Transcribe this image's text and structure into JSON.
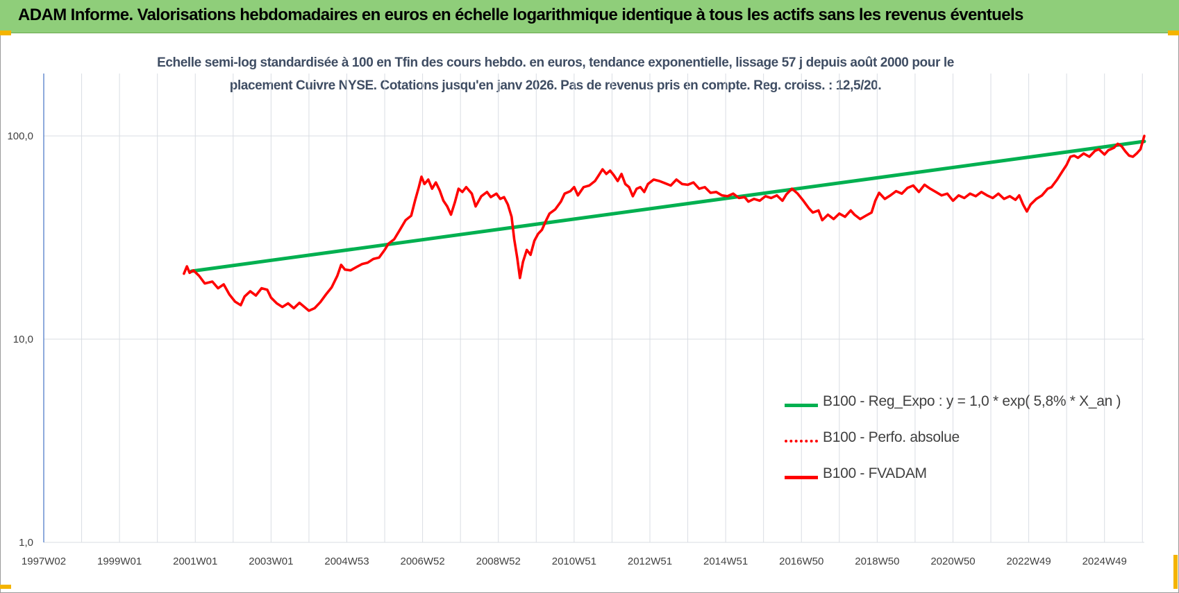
{
  "header": {
    "title": "ADAM Informe. Valorisations hebdomadaires en euros en échelle logarithmique identique à tous les actifs sans les revenus éventuels"
  },
  "chart_data": {
    "type": "line",
    "title": "",
    "subtitle_lines": [
      "Echelle semi-log standardisée à 100 en Tfin des cours hebdo. en euros, tendance exponentielle, lissage 57 j depuis août 2000 pour le",
      "placement Cuivre NYSE. Cotations jusqu'en janv 2026. Pas de revenus pris en compte. Reg. croiss. : 12,5/20."
    ],
    "y_scale": "log",
    "ylim": [
      1,
      200
    ],
    "y_ticks": [
      {
        "value": 1,
        "label": "1,0"
      },
      {
        "value": 10,
        "label": "10,0"
      },
      {
        "value": 100,
        "label": "100,0"
      }
    ],
    "xlim": [
      1997.0,
      2026.05
    ],
    "x_ticks": [
      {
        "value": 1997.0,
        "label": "1997W02"
      },
      {
        "value": 1999.0,
        "label": "1999W01"
      },
      {
        "value": 2001.0,
        "label": "2001W01"
      },
      {
        "value": 2003.0,
        "label": "2003W01"
      },
      {
        "value": 2005.0,
        "label": "2004W53"
      },
      {
        "value": 2007.0,
        "label": "2006W52"
      },
      {
        "value": 2009.0,
        "label": "2008W52"
      },
      {
        "value": 2011.0,
        "label": "2010W51"
      },
      {
        "value": 2013.0,
        "label": "2012W51"
      },
      {
        "value": 2015.0,
        "label": "2014W51"
      },
      {
        "value": 2017.0,
        "label": "2016W50"
      },
      {
        "value": 2019.0,
        "label": "2018W50"
      },
      {
        "value": 2021.0,
        "label": "2020W50"
      },
      {
        "value": 2023.0,
        "label": "2022W49"
      },
      {
        "value": 2025.0,
        "label": "2024W49"
      }
    ],
    "grid": true,
    "legend_position": "bottom-right",
    "series": [
      {
        "name": "B100 - Reg_Expo : y = 1,0 * exp( 5,8% *  X_an )",
        "color": "#00b050",
        "style": "solid",
        "points": [
          [
            2000.9,
            21.6
          ],
          [
            2026.05,
            94.0
          ]
        ]
      },
      {
        "name": "B100 - Perfo. absolue",
        "color": "#ff0000",
        "style": "dotted",
        "points": []
      },
      {
        "name": "B100 - FVADAM",
        "color": "#ff0000",
        "style": "solid",
        "points": [
          [
            2000.7,
            21.0
          ],
          [
            2000.78,
            22.8
          ],
          [
            2000.85,
            21.2
          ],
          [
            2000.95,
            21.8
          ],
          [
            2001.1,
            20.5
          ],
          [
            2001.25,
            18.8
          ],
          [
            2001.45,
            19.2
          ],
          [
            2001.6,
            17.8
          ],
          [
            2001.75,
            18.6
          ],
          [
            2001.9,
            16.6
          ],
          [
            2002.05,
            15.3
          ],
          [
            2002.2,
            14.7
          ],
          [
            2002.3,
            16.2
          ],
          [
            2002.45,
            17.2
          ],
          [
            2002.6,
            16.4
          ],
          [
            2002.75,
            17.8
          ],
          [
            2002.9,
            17.5
          ],
          [
            2003.0,
            16.0
          ],
          [
            2003.15,
            15.0
          ],
          [
            2003.3,
            14.4
          ],
          [
            2003.45,
            15.0
          ],
          [
            2003.6,
            14.2
          ],
          [
            2003.75,
            15.1
          ],
          [
            2003.9,
            14.3
          ],
          [
            2004.0,
            13.8
          ],
          [
            2004.15,
            14.2
          ],
          [
            2004.3,
            15.2
          ],
          [
            2004.45,
            16.6
          ],
          [
            2004.6,
            18.0
          ],
          [
            2004.75,
            20.5
          ],
          [
            2004.85,
            23.2
          ],
          [
            2004.95,
            22.0
          ],
          [
            2005.1,
            21.8
          ],
          [
            2005.25,
            22.6
          ],
          [
            2005.4,
            23.4
          ],
          [
            2005.55,
            23.8
          ],
          [
            2005.7,
            24.8
          ],
          [
            2005.85,
            25.2
          ],
          [
            2006.0,
            27.5
          ],
          [
            2006.1,
            29.5
          ],
          [
            2006.25,
            31.0
          ],
          [
            2006.4,
            34.5
          ],
          [
            2006.55,
            38.5
          ],
          [
            2006.7,
            40.5
          ],
          [
            2006.8,
            48.0
          ],
          [
            2006.9,
            56.0
          ],
          [
            2006.97,
            63.0
          ],
          [
            2007.05,
            58.0
          ],
          [
            2007.15,
            61.0
          ],
          [
            2007.25,
            55.0
          ],
          [
            2007.35,
            59.0
          ],
          [
            2007.45,
            54.0
          ],
          [
            2007.55,
            48.0
          ],
          [
            2007.65,
            45.0
          ],
          [
            2007.75,
            41.0
          ],
          [
            2007.85,
            47.0
          ],
          [
            2007.95,
            55.0
          ],
          [
            2008.05,
            53.0
          ],
          [
            2008.15,
            56.0
          ],
          [
            2008.3,
            52.0
          ],
          [
            2008.4,
            45.0
          ],
          [
            2008.55,
            50.5
          ],
          [
            2008.7,
            53.0
          ],
          [
            2008.8,
            50.0
          ],
          [
            2008.95,
            52.0
          ],
          [
            2009.05,
            49.0
          ],
          [
            2009.15,
            50.0
          ],
          [
            2009.25,
            46.0
          ],
          [
            2009.35,
            40.0
          ],
          [
            2009.42,
            31.0
          ],
          [
            2009.5,
            25.0
          ],
          [
            2009.57,
            20.0
          ],
          [
            2009.65,
            24.0
          ],
          [
            2009.75,
            27.5
          ],
          [
            2009.85,
            26.0
          ],
          [
            2009.95,
            30.5
          ],
          [
            2010.05,
            33.0
          ],
          [
            2010.15,
            34.5
          ],
          [
            2010.25,
            38.0
          ],
          [
            2010.35,
            41.5
          ],
          [
            2010.5,
            43.5
          ],
          [
            2010.65,
            47.5
          ],
          [
            2010.75,
            52.0
          ],
          [
            2010.9,
            53.5
          ],
          [
            2011.0,
            56.0
          ],
          [
            2011.1,
            51.0
          ],
          [
            2011.25,
            56.0
          ],
          [
            2011.4,
            57.0
          ],
          [
            2011.55,
            60.0
          ],
          [
            2011.65,
            64.0
          ],
          [
            2011.75,
            68.5
          ],
          [
            2011.85,
            65.0
          ],
          [
            2011.95,
            67.5
          ],
          [
            2012.05,
            64.0
          ],
          [
            2012.15,
            60.0
          ],
          [
            2012.25,
            65.0
          ],
          [
            2012.35,
            58.0
          ],
          [
            2012.45,
            56.0
          ],
          [
            2012.55,
            50.5
          ],
          [
            2012.65,
            55.0
          ],
          [
            2012.75,
            56.0
          ],
          [
            2012.85,
            53.0
          ],
          [
            2012.95,
            58.0
          ],
          [
            2013.1,
            61.0
          ],
          [
            2013.25,
            60.0
          ],
          [
            2013.4,
            58.5
          ],
          [
            2013.55,
            57.0
          ],
          [
            2013.7,
            61.0
          ],
          [
            2013.85,
            58.0
          ],
          [
            2014.0,
            57.5
          ],
          [
            2014.15,
            59.0
          ],
          [
            2014.3,
            55.0
          ],
          [
            2014.45,
            56.0
          ],
          [
            2014.6,
            52.5
          ],
          [
            2014.75,
            53.0
          ],
          [
            2014.9,
            51.0
          ],
          [
            2015.05,
            50.5
          ],
          [
            2015.2,
            52.0
          ],
          [
            2015.35,
            49.5
          ],
          [
            2015.5,
            50.0
          ],
          [
            2015.6,
            47.5
          ],
          [
            2015.75,
            49.0
          ],
          [
            2015.9,
            48.0
          ],
          [
            2016.05,
            50.5
          ],
          [
            2016.2,
            49.5
          ],
          [
            2016.35,
            51.0
          ],
          [
            2016.5,
            48.0
          ],
          [
            2016.6,
            51.5
          ],
          [
            2016.75,
            55.0
          ],
          [
            2016.9,
            52.0
          ],
          [
            2017.05,
            48.0
          ],
          [
            2017.2,
            44.0
          ],
          [
            2017.3,
            42.0
          ],
          [
            2017.45,
            43.0
          ],
          [
            2017.55,
            38.5
          ],
          [
            2017.7,
            41.0
          ],
          [
            2017.85,
            39.0
          ],
          [
            2018.0,
            41.5
          ],
          [
            2018.15,
            40.0
          ],
          [
            2018.3,
            43.0
          ],
          [
            2018.4,
            41.0
          ],
          [
            2018.55,
            39.0
          ],
          [
            2018.7,
            40.5
          ],
          [
            2018.85,
            42.0
          ],
          [
            2018.95,
            48.0
          ],
          [
            2019.05,
            52.5
          ],
          [
            2019.2,
            49.0
          ],
          [
            2019.35,
            51.0
          ],
          [
            2019.5,
            53.5
          ],
          [
            2019.65,
            52.0
          ],
          [
            2019.8,
            55.5
          ],
          [
            2019.95,
            57.0
          ],
          [
            2020.1,
            53.0
          ],
          [
            2020.25,
            57.5
          ],
          [
            2020.4,
            55.0
          ],
          [
            2020.55,
            53.0
          ],
          [
            2020.7,
            51.0
          ],
          [
            2020.85,
            52.0
          ],
          [
            2021.0,
            48.0
          ],
          [
            2021.15,
            51.0
          ],
          [
            2021.3,
            49.5
          ],
          [
            2021.45,
            52.0
          ],
          [
            2021.6,
            50.5
          ],
          [
            2021.75,
            53.0
          ],
          [
            2021.9,
            51.0
          ],
          [
            2022.05,
            49.5
          ],
          [
            2022.2,
            52.0
          ],
          [
            2022.35,
            49.0
          ],
          [
            2022.5,
            50.5
          ],
          [
            2022.65,
            48.5
          ],
          [
            2022.75,
            51.0
          ],
          [
            2022.85,
            46.0
          ],
          [
            2022.95,
            42.5
          ],
          [
            2023.05,
            46.0
          ],
          [
            2023.2,
            49.0
          ],
          [
            2023.35,
            51.0
          ],
          [
            2023.5,
            55.0
          ],
          [
            2023.6,
            56.0
          ],
          [
            2023.75,
            61.0
          ],
          [
            2023.9,
            67.5
          ],
          [
            2024.0,
            72.0
          ],
          [
            2024.1,
            79.0
          ],
          [
            2024.2,
            80.0
          ],
          [
            2024.3,
            78.0
          ],
          [
            2024.45,
            82.0
          ],
          [
            2024.6,
            79.0
          ],
          [
            2024.75,
            84.5
          ],
          [
            2024.85,
            86.0
          ],
          [
            2025.0,
            81.0
          ],
          [
            2025.1,
            85.0
          ],
          [
            2025.25,
            87.5
          ],
          [
            2025.35,
            91.5
          ],
          [
            2025.45,
            89.0
          ],
          [
            2025.55,
            84.0
          ],
          [
            2025.65,
            80.0
          ],
          [
            2025.75,
            79.0
          ],
          [
            2025.85,
            82.0
          ],
          [
            2025.95,
            86.0
          ],
          [
            2026.05,
            100.0
          ]
        ]
      }
    ]
  }
}
